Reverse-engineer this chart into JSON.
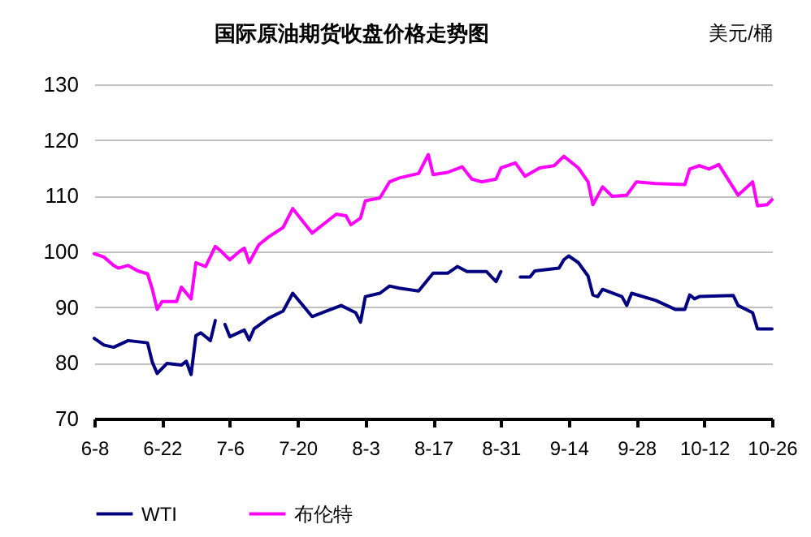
{
  "chart_data": {
    "type": "line",
    "title": "国际原油期货收盘价格走势图",
    "ylabel": "美元/桶",
    "xlim": [
      "--06-08",
      "--10-26"
    ],
    "xticks": [
      {
        "value": "--06-08",
        "label": "6-8"
      },
      {
        "value": "--06-22",
        "label": "6-22"
      },
      {
        "value": "--07-06",
        "label": "7-6"
      },
      {
        "value": "--07-20",
        "label": "7-20"
      },
      {
        "value": "--08-03",
        "label": "8-3"
      },
      {
        "value": "--08-17",
        "label": "8-17"
      },
      {
        "value": "--08-31",
        "label": "8-31"
      },
      {
        "value": "--09-14",
        "label": "9-14"
      },
      {
        "value": "--09-28",
        "label": "9-28"
      },
      {
        "value": "--10-12",
        "label": "10-12"
      },
      {
        "value": "--10-26",
        "label": "10-26"
      }
    ],
    "ylim": [
      70,
      130
    ],
    "yticks": [
      70,
      80,
      90,
      100,
      110,
      120,
      130
    ],
    "grid": "y",
    "legend": "bottom",
    "series": [
      {
        "name": "WTI",
        "color": "#000080",
        "x": [
          "--06-08",
          "--06-10",
          "--06-12",
          "--06-15",
          "--06-19",
          "--06-20",
          "--06-21",
          "--06-23",
          "--06-26",
          "--06-27",
          "--06-28",
          "--06-29",
          "--06-30",
          "--07-02",
          "--07-03",
          "--07-04",
          "--07-05",
          "--07-06",
          "--07-09",
          "--07-10",
          "--07-11",
          "--07-14",
          "--07-17",
          "--07-19",
          "--07-23",
          "--07-26",
          "--07-29",
          "--08-01",
          "--08-02",
          "--08-03",
          "--08-06",
          "--08-08",
          "--08-10",
          "--08-14",
          "--08-17",
          "--08-20",
          "--08-22",
          "--08-24",
          "--08-28",
          "--08-30",
          "--08-31",
          "--09-02",
          "--09-04",
          "--09-06",
          "--09-07",
          "--09-12",
          "--09-13",
          "--09-14",
          "--09-16",
          "--09-18",
          "--09-19",
          "--09-20",
          "--09-21",
          "--09-25",
          "--09-26",
          "--09-27",
          "--10-02",
          "--10-06",
          "--10-08",
          "--10-09",
          "--10-10",
          "--10-11",
          "--10-18",
          "--10-19",
          "--10-22",
          "--10-23",
          "--10-26"
        ],
        "values": [
          84.4,
          83.2,
          82.8,
          84,
          83.6,
          80.1,
          78.1,
          79.9,
          79.6,
          80.3,
          77.9,
          84.9,
          85.4,
          84,
          87.6,
          null,
          86.9,
          84.7,
          85.9,
          84.1,
          86.1,
          88,
          89.3,
          92.5,
          88.3,
          89.3,
          90.3,
          89,
          87.3,
          91.9,
          92.5,
          93.8,
          93.4,
          92.9,
          96.1,
          96.1,
          97.3,
          96.4,
          96.4,
          94.6,
          96.4,
          null,
          95.4,
          95.4,
          96.5,
          97,
          98.5,
          99.2,
          98,
          95.6,
          92.2,
          91.9,
          93.2,
          91.9,
          90.3,
          92.5,
          91.2,
          89.6,
          89.6,
          92.2,
          91.5,
          91.9,
          92.1,
          90.3,
          89,
          86.1,
          86.1
        ]
      },
      {
        "name": "布伦特",
        "color": "#ff00ff",
        "x": [
          "--06-08",
          "--06-10",
          "--06-12",
          "--06-13",
          "--06-15",
          "--06-17",
          "--06-19",
          "--06-20",
          "--06-21",
          "--06-22",
          "--06-25",
          "--06-26",
          "--06-28",
          "--06-29",
          "--07-01",
          "--07-03",
          "--07-04",
          "--07-06",
          "--07-08",
          "--07-09",
          "--07-10",
          "--07-12",
          "--07-14",
          "--07-17",
          "--07-19",
          "--07-21",
          "--07-23",
          "--07-28",
          "--07-30",
          "--07-31",
          "--08-02",
          "--08-03",
          "--08-06",
          "--08-08",
          "--08-10",
          "--08-14",
          "--08-16",
          "--08-17",
          "--08-20",
          "--08-23",
          "--08-25",
          "--08-27",
          "--08-30",
          "--08-31",
          "--09-03",
          "--09-05",
          "--09-08",
          "--09-11",
          "--09-13",
          "--09-16",
          "--09-18",
          "--09-19",
          "--09-21",
          "--09-23",
          "--09-26",
          "--09-28",
          "--10-02",
          "--10-08",
          "--10-09",
          "--10-11",
          "--10-13",
          "--10-15",
          "--10-19",
          "--10-22",
          "--10-23",
          "--10-25",
          "--10-26"
        ],
        "values": [
          99.6,
          99,
          97.5,
          97,
          97.5,
          96.5,
          96,
          93.2,
          89.6,
          91,
          91,
          93.6,
          91.5,
          98,
          97.3,
          100.9,
          100.2,
          98.5,
          100,
          100.6,
          98,
          101.2,
          102.6,
          104.3,
          107.7,
          105.5,
          103.3,
          106.7,
          106.4,
          104.8,
          106,
          109.1,
          109.6,
          112.5,
          113.2,
          114,
          117.4,
          113.8,
          114.2,
          115.2,
          113,
          112.5,
          113,
          115,
          115.9,
          113.5,
          115,
          115.4,
          117.1,
          115,
          112.5,
          108.4,
          111.6,
          109.9,
          110.1,
          112.5,
          112.2,
          112,
          114.8,
          115.4,
          114.8,
          115.6,
          110.1,
          112.5,
          108.2,
          108.4,
          109.3
        ]
      }
    ]
  }
}
